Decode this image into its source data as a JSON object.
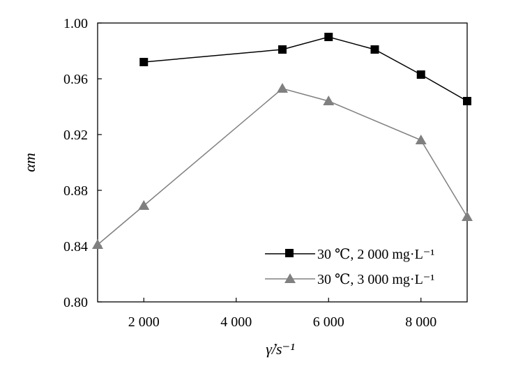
{
  "chart_data": {
    "type": "line",
    "title": "",
    "xlabel": "γ̇/s⁻¹",
    "ylabel": "αm",
    "xlim": [
      1000,
      9000
    ],
    "ylim": [
      0.8,
      1.0
    ],
    "xticks": [
      2000,
      4000,
      6000,
      8000
    ],
    "xtick_labels": [
      "2 000",
      "4 000",
      "6 000",
      "8 000"
    ],
    "yticks": [
      0.8,
      0.84,
      0.88,
      0.92,
      0.96,
      1.0
    ],
    "ytick_labels": [
      "0.80",
      "0.84",
      "0.88",
      "0.92",
      "0.96",
      "1.00"
    ],
    "grid": false,
    "legend_position": "bottom-right",
    "series": [
      {
        "name": "30 ℃, 2 000 mg·L⁻¹",
        "marker": "square",
        "color": "#000000",
        "x": [
          2000,
          5000,
          6000,
          7000,
          8000,
          9000
        ],
        "y": [
          0.972,
          0.981,
          0.99,
          0.981,
          0.963,
          0.944
        ]
      },
      {
        "name": "30 ℃, 3 000 mg·L⁻¹",
        "marker": "triangle",
        "color": "#808080",
        "x": [
          1000,
          2000,
          5000,
          6000,
          8000,
          9000
        ],
        "y": [
          0.841,
          0.869,
          0.953,
          0.944,
          0.916,
          0.861
        ]
      }
    ]
  }
}
